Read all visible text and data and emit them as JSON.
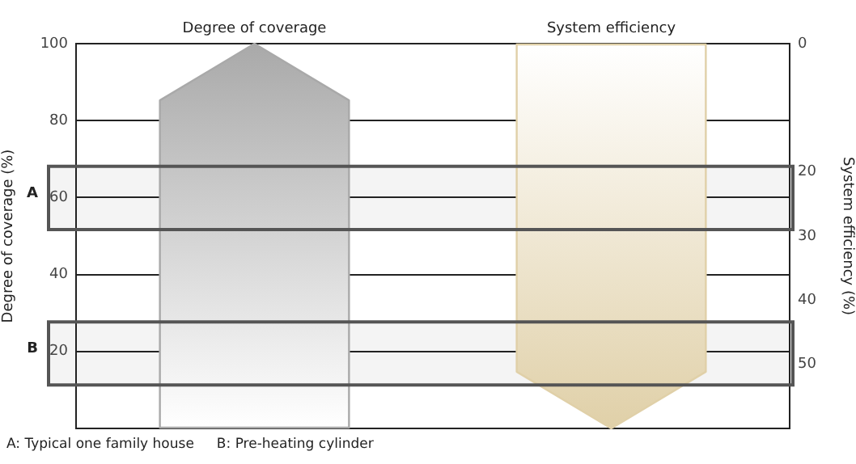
{
  "chart_data": {
    "type": "bar",
    "categories": [
      "Degree of coverage",
      "System efficiency"
    ],
    "series": [
      {
        "color": "#a9a9a9",
        "values": [
          100,
          null
        ]
      },
      {
        "color": "#e0d0a8",
        "values": [
          null,
          60
        ],
        "axis": "y2"
      }
    ],
    "ylabel": "Degree of coverage (%)",
    "y2label": "System efficiency (%)",
    "ylim": [
      0,
      100
    ],
    "yticks": [
      {
        "value": 0,
        "label": null
      },
      20,
      40,
      60,
      80,
      100
    ],
    "y2lim": [
      60,
      0
    ],
    "y2ticks": [
      0,
      20,
      30,
      40,
      50
    ],
    "grid": "y",
    "bands": [
      {
        "axis": "y",
        "from": 51.7,
        "to": 68.1,
        "label": "A",
        "color": "#f4f4f4"
      },
      {
        "axis": "y",
        "from": 11.3,
        "to": 27.7,
        "label": "B",
        "color": "#f4f4f4"
      }
    ],
    "annotations": [
      "A: Typical one family house",
      "B: Pre-heating cylinder"
    ]
  }
}
